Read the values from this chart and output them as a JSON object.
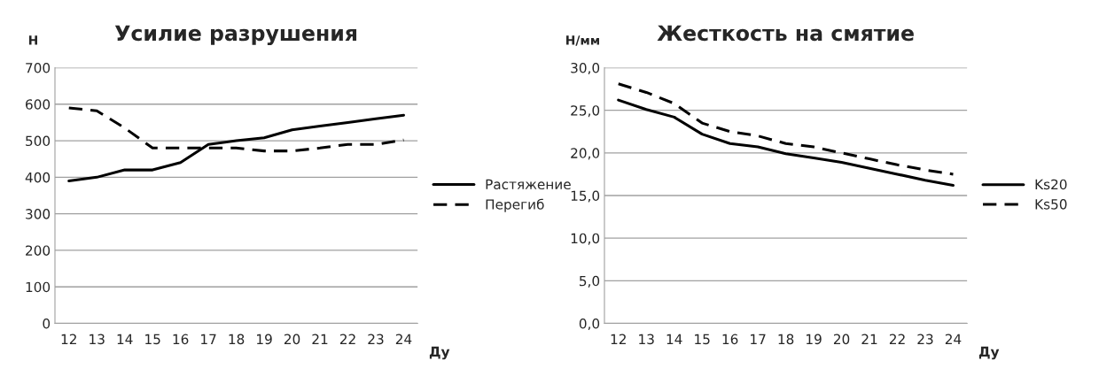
{
  "chart_data": [
    {
      "type": "line",
      "title": "Усилие разрушения",
      "ylabel": "Н",
      "xlabel": "Ду",
      "categories": [
        "12",
        "13",
        "14",
        "15",
        "16",
        "17",
        "18",
        "19",
        "20",
        "21",
        "22",
        "23",
        "24"
      ],
      "series": [
        {
          "name": "Растяжение",
          "color": "#000000",
          "line_style": "solid",
          "values": [
            390,
            400,
            420,
            420,
            440,
            490,
            500,
            508,
            530,
            540,
            550,
            560,
            570
          ]
        },
        {
          "name": "Перегиб",
          "color": "#000000",
          "line_style": "dashed",
          "values": [
            590,
            582,
            535,
            480,
            480,
            480,
            480,
            472,
            472,
            480,
            490,
            490,
            502
          ]
        }
      ],
      "ylim": [
        0,
        700
      ],
      "yticks": [
        0,
        100,
        200,
        300,
        400,
        500,
        600,
        700
      ],
      "grid": "y",
      "legend": "right",
      "marker": "none"
    },
    {
      "type": "line",
      "title": "Жесткость на смятие",
      "ylabel": "Н/мм",
      "xlabel": "Ду",
      "categories": [
        "12",
        "13",
        "14",
        "15",
        "16",
        "17",
        "18",
        "19",
        "20",
        "21",
        "22",
        "23",
        "24"
      ],
      "series": [
        {
          "name": "Ks20",
          "color": "#000000",
          "line_style": "solid",
          "values": [
            26.2,
            25.1,
            24.2,
            22.2,
            21.1,
            20.7,
            19.9,
            19.4,
            18.9,
            18.2,
            17.5,
            16.8,
            16.2
          ]
        },
        {
          "name": "Ks50",
          "color": "#000000",
          "line_style": "dashed",
          "values": [
            28.1,
            27.1,
            25.8,
            23.5,
            22.5,
            22.0,
            21.1,
            20.7,
            20.0,
            19.3,
            18.6,
            18.0,
            17.5
          ]
        }
      ],
      "ylim": [
        0,
        30
      ],
      "yticks": [
        {
          "value": 0,
          "label": "0,0"
        },
        {
          "value": 5,
          "label": "5,0"
        },
        {
          "value": 10,
          "label": "10,0"
        },
        {
          "value": 15,
          "label": "15,0"
        },
        {
          "value": 20,
          "label": "20,0"
        },
        {
          "value": 25,
          "label": "25,0"
        },
        {
          "value": 30,
          "label": "30,0"
        }
      ],
      "grid": "y",
      "legend": "right",
      "marker": "none"
    }
  ]
}
